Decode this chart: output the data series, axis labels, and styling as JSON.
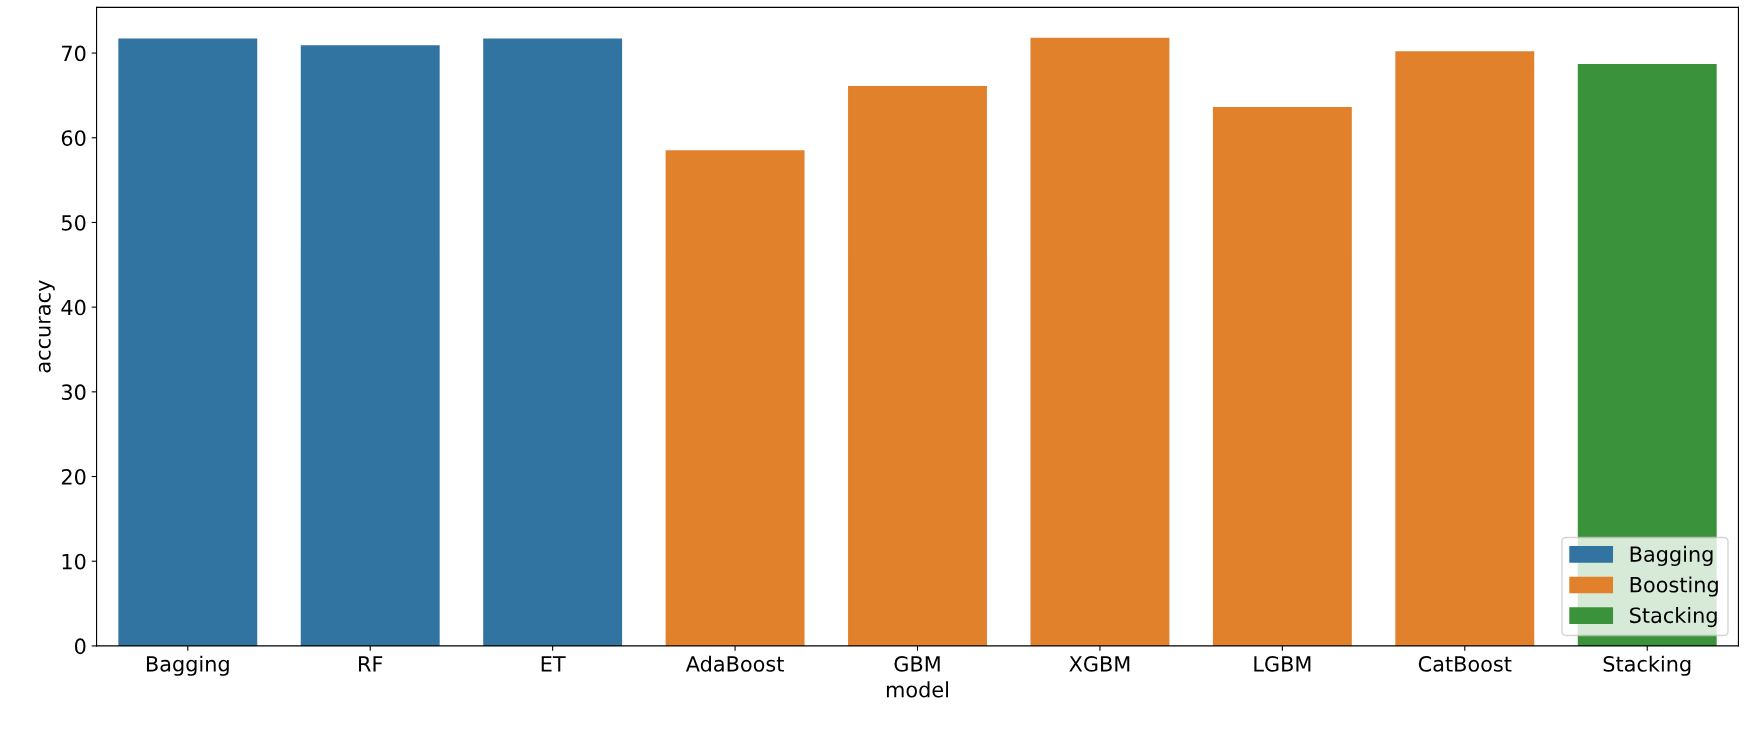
{
  "chart_data": {
    "type": "bar",
    "xlabel": "model",
    "ylabel": "accuracy",
    "categories": [
      "Bagging",
      "RF",
      "ET",
      "AdaBoost",
      "GBM",
      "XGBM",
      "LGBM",
      "CatBoost",
      "Stacking"
    ],
    "series": [
      {
        "name": "Bagging",
        "color": "#3274a1",
        "values": [
          71.6,
          70.8,
          71.6,
          null,
          null,
          null,
          null,
          null,
          null
        ]
      },
      {
        "name": "Boosting",
        "color": "#e1812c",
        "values": [
          null,
          null,
          null,
          58.4,
          66.0,
          71.7,
          63.5,
          70.1,
          null
        ]
      },
      {
        "name": "Stacking",
        "color": "#3a923a",
        "values": [
          null,
          null,
          null,
          null,
          null,
          null,
          null,
          null,
          68.6
        ]
      }
    ],
    "ylim": [
      0,
      75.4
    ],
    "yticks": [
      0,
      10,
      20,
      30,
      40,
      50,
      60,
      70
    ],
    "grid": false,
    "legend": "bottom right"
  }
}
